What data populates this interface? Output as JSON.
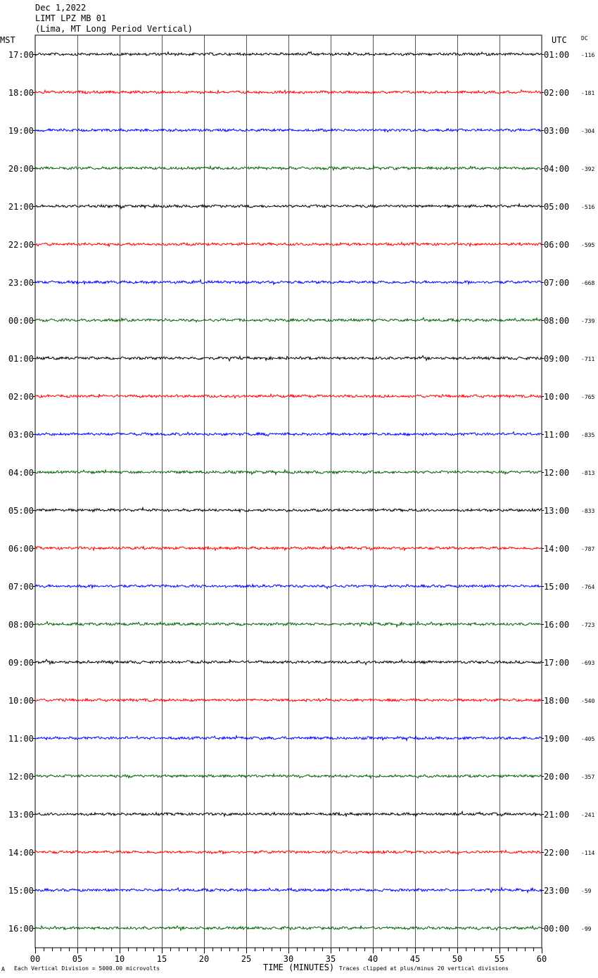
{
  "header": {
    "date": "Dec 1,2022",
    "station": "LIMT LPZ MB 01",
    "location": "(Lima, MT Long Period Vertical)"
  },
  "left_axis_title": "MST",
  "right_axis_title": "UTC",
  "dc_title": "DC",
  "footer": {
    "scale_note": "Each Vertical Division = 5000.00 microvolts",
    "clip_note": "Traces clipped at plus/minus 20 vertical divisions",
    "corner_mark": "A"
  },
  "chart_data": {
    "type": "line",
    "title": "",
    "xlabel": "TIME (MINUTES)",
    "ylabel": "",
    "xlim": [
      0,
      60
    ],
    "x_ticks": [
      "00",
      "05",
      "10",
      "15",
      "20",
      "25",
      "30",
      "35",
      "40",
      "45",
      "50",
      "55",
      "60"
    ],
    "grid": true,
    "trace_colors": [
      "#000000",
      "#ff0000",
      "#0000ff",
      "#006400"
    ],
    "rows": [
      {
        "mst": "17:00",
        "utc": "01:00",
        "dc": "-116"
      },
      {
        "mst": "18:00",
        "utc": "02:00",
        "dc": "-181"
      },
      {
        "mst": "19:00",
        "utc": "03:00",
        "dc": "-304"
      },
      {
        "mst": "20:00",
        "utc": "04:00",
        "dc": "-392"
      },
      {
        "mst": "21:00",
        "utc": "05:00",
        "dc": "-516"
      },
      {
        "mst": "22:00",
        "utc": "06:00",
        "dc": "-595"
      },
      {
        "mst": "23:00",
        "utc": "07:00",
        "dc": "-668"
      },
      {
        "mst": "00:00",
        "utc": "08:00",
        "dc": "-739"
      },
      {
        "mst": "01:00",
        "utc": "09:00",
        "dc": "-711"
      },
      {
        "mst": "02:00",
        "utc": "10:00",
        "dc": "-765"
      },
      {
        "mst": "03:00",
        "utc": "11:00",
        "dc": "-835"
      },
      {
        "mst": "04:00",
        "utc": "12:00",
        "dc": "-813"
      },
      {
        "mst": "05:00",
        "utc": "13:00",
        "dc": "-833"
      },
      {
        "mst": "06:00",
        "utc": "14:00",
        "dc": "-787"
      },
      {
        "mst": "07:00",
        "utc": "15:00",
        "dc": "-764"
      },
      {
        "mst": "08:00",
        "utc": "16:00",
        "dc": "-723"
      },
      {
        "mst": "09:00",
        "utc": "17:00",
        "dc": "-693"
      },
      {
        "mst": "10:00",
        "utc": "18:00",
        "dc": "-540"
      },
      {
        "mst": "11:00",
        "utc": "19:00",
        "dc": "-405"
      },
      {
        "mst": "12:00",
        "utc": "20:00",
        "dc": "-357"
      },
      {
        "mst": "13:00",
        "utc": "21:00",
        "dc": "-241"
      },
      {
        "mst": "14:00",
        "utc": "22:00",
        "dc": "-114"
      },
      {
        "mst": "15:00",
        "utc": "23:00",
        "dc": "-59"
      },
      {
        "mst": "16:00",
        "utc": "00:00",
        "dc": "-99"
      }
    ]
  }
}
